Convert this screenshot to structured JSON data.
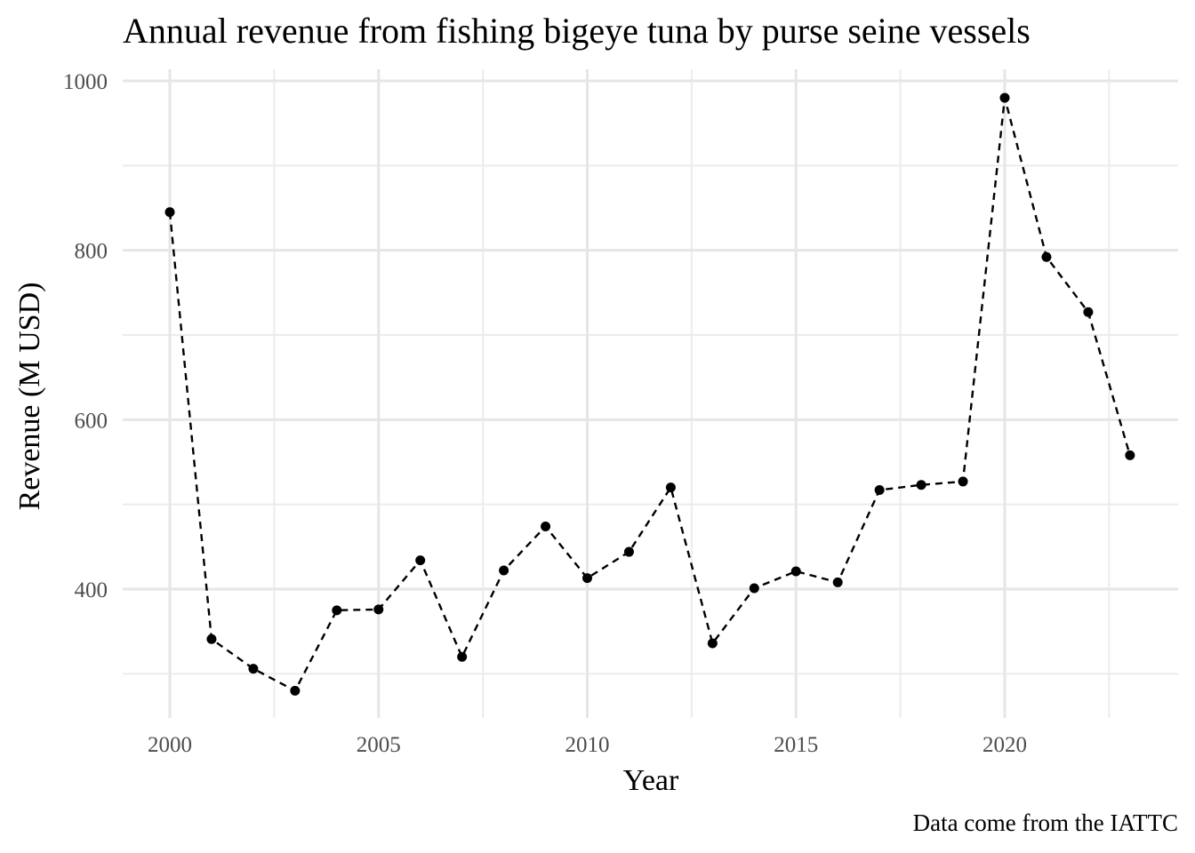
{
  "chart_data": {
    "type": "line",
    "title": "Annual revenue from fishing bigeye tuna by purse seine vessels",
    "xlabel": "Year",
    "ylabel": "Revenue (M USD)",
    "caption": "Data come from the IATTC",
    "x": [
      2000,
      2001,
      2002,
      2003,
      2004,
      2005,
      2006,
      2007,
      2008,
      2009,
      2010,
      2011,
      2012,
      2013,
      2014,
      2015,
      2016,
      2017,
      2018,
      2019,
      2020,
      2021,
      2022,
      2023
    ],
    "series": [
      {
        "values": [
          845,
          341,
          306,
          280,
          375,
          376,
          434,
          320,
          422,
          474,
          413,
          444,
          520,
          336,
          401,
          421,
          408,
          517,
          523,
          527,
          980,
          792,
          727,
          558
        ],
        "line_style": "dashed",
        "markers": true,
        "color": "#000000"
      }
    ],
    "xlim": [
      1998.9,
      2023.6
    ],
    "ylim": [
      250,
      1000
    ],
    "x_ticks": [
      2000,
      2005,
      2010,
      2015,
      2020
    ],
    "x_tick_labels": [
      "2000",
      "2005",
      "2010",
      "2015",
      "2020"
    ],
    "y_ticks": [
      400,
      600,
      800,
      1000
    ],
    "y_tick_labels": [
      "400",
      "600",
      "800",
      "1000"
    ],
    "grid": true,
    "legend": "none"
  }
}
